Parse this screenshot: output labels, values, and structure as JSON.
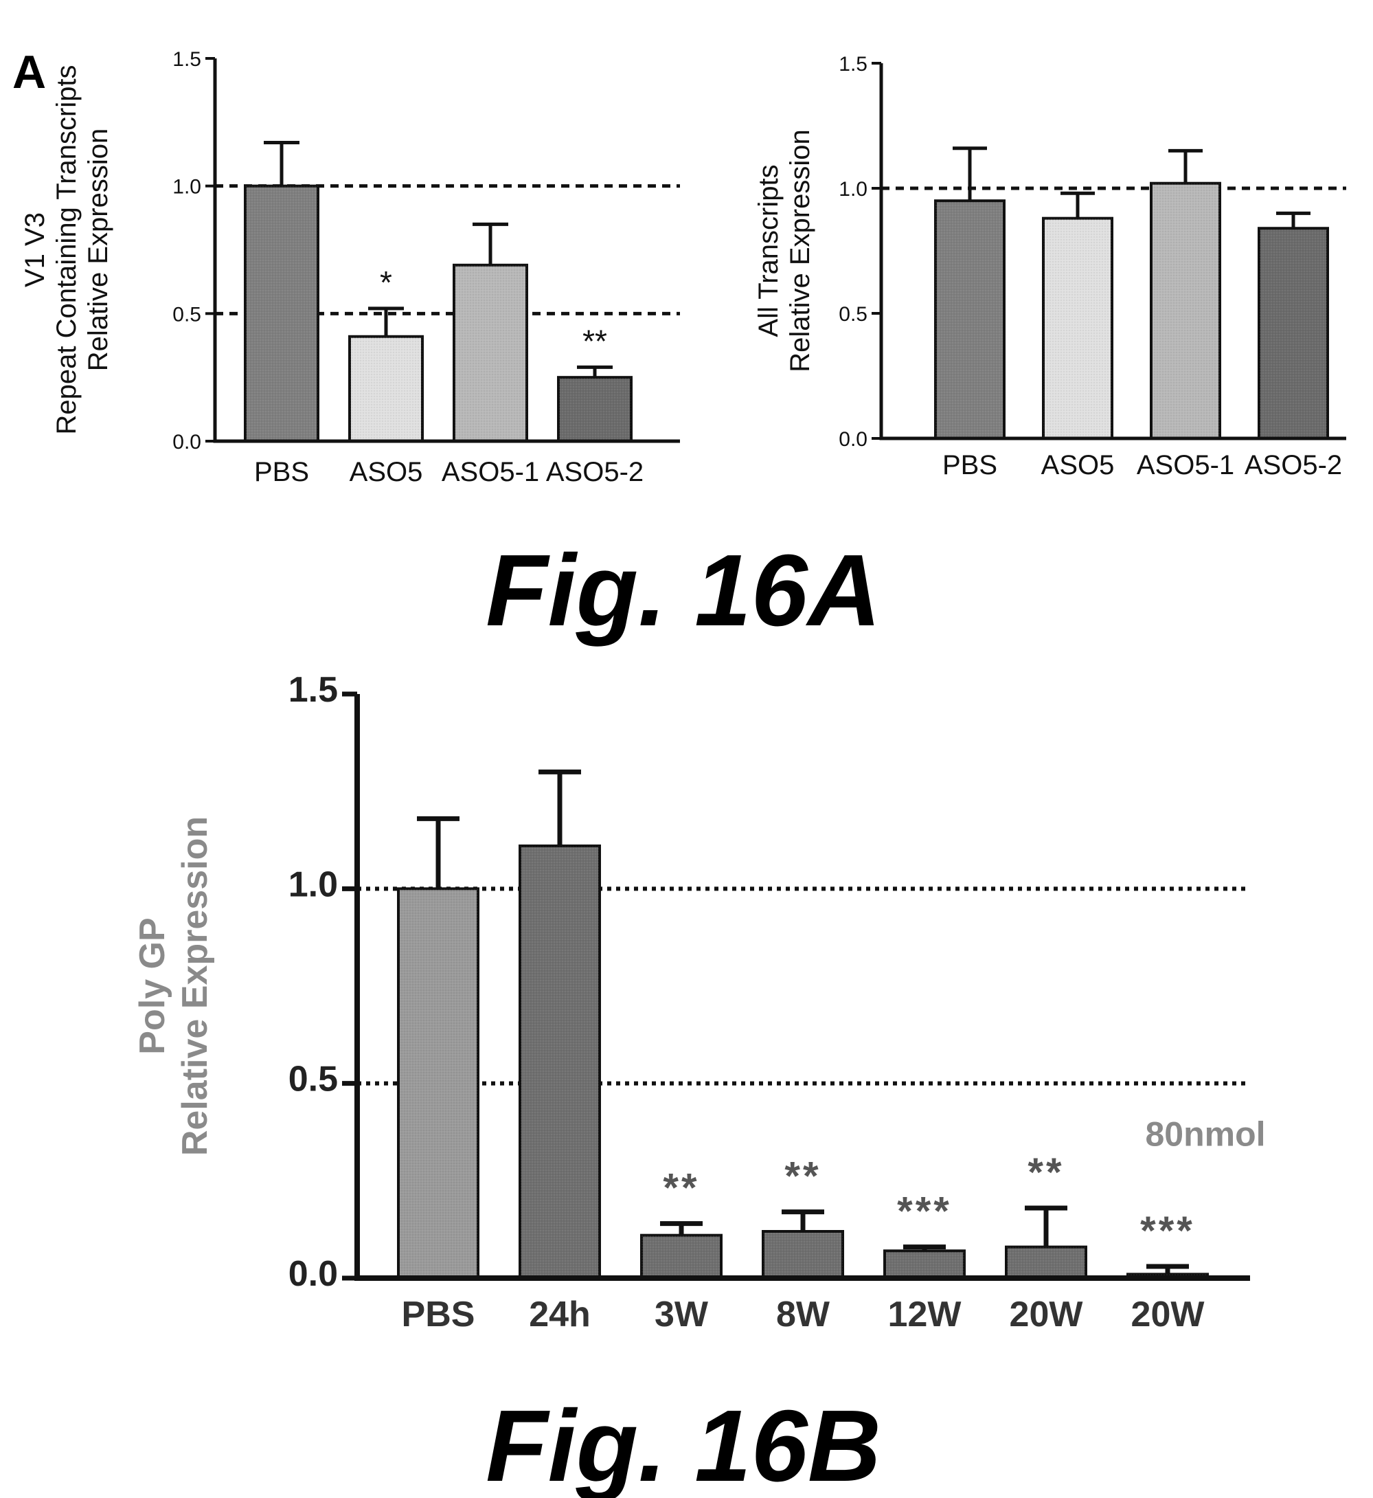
{
  "panel_label": "A",
  "captions": [
    "Fig. 16A",
    "Fig. 16B"
  ],
  "chart_data": [
    {
      "type": "bar",
      "categories": [
        "PBS",
        "ASO5",
        "ASO5-1",
        "ASO5-2"
      ],
      "values": [
        1.0,
        0.41,
        0.69,
        0.25
      ],
      "errors": [
        0.17,
        0.11,
        0.16,
        0.04
      ],
      "annotations": [
        "",
        "*",
        "",
        "**"
      ],
      "ylabel_lines": [
        "V1 V3",
        "Repeat Containing Transcripts",
        "Relative Expression"
      ],
      "yticks": [
        "0.0",
        "0.5",
        "1.0",
        "1.5"
      ],
      "ylim": [
        0,
        1.5
      ],
      "reference_lines": [
        1.0,
        0.5
      ],
      "grid": false,
      "colors": [
        "#7f7f7f",
        "#e0e0e0",
        "#b8b8b8",
        "#6b6b6b"
      ]
    },
    {
      "type": "bar",
      "categories": [
        "PBS",
        "ASO5",
        "ASO5-1",
        "ASO5-2"
      ],
      "values": [
        0.95,
        0.88,
        1.02,
        0.84
      ],
      "errors": [
        0.21,
        0.1,
        0.13,
        0.06
      ],
      "annotations": [
        "",
        "",
        "",
        ""
      ],
      "ylabel_lines": [
        "All Transcripts",
        "Relative Expression"
      ],
      "yticks": [
        "0.0",
        "0.5",
        "1.0",
        "1.5"
      ],
      "ylim": [
        0,
        1.5
      ],
      "reference_lines": [
        1.0
      ],
      "grid": false,
      "colors": [
        "#7f7f7f",
        "#e0e0e0",
        "#b8b8b8",
        "#6b6b6b"
      ]
    },
    {
      "type": "bar",
      "categories": [
        "PBS",
        "24h",
        "3W",
        "8W",
        "12W",
        "20W",
        "20W"
      ],
      "values": [
        1.0,
        1.11,
        0.11,
        0.12,
        0.07,
        0.08,
        0.01
      ],
      "errors": [
        0.18,
        0.19,
        0.03,
        0.05,
        0.01,
        0.1,
        0.02
      ],
      "annotations": [
        "",
        "",
        "**",
        "**",
        "***",
        "**",
        "***"
      ],
      "bar_note": "80nmol",
      "ylabel_lines": [
        "Poly GP",
        "Relative Expression"
      ],
      "yticks": [
        "0.0",
        "0.5",
        "1.0",
        "1.5"
      ],
      "ylim": [
        0,
        1.5
      ],
      "reference_lines": [
        1.0,
        0.5
      ],
      "grid": false,
      "colors": [
        "#9a9a9a",
        "#6f6f6f",
        "#6f6f6f",
        "#6f6f6f",
        "#6f6f6f",
        "#6f6f6f",
        "#6f6f6f"
      ]
    }
  ]
}
